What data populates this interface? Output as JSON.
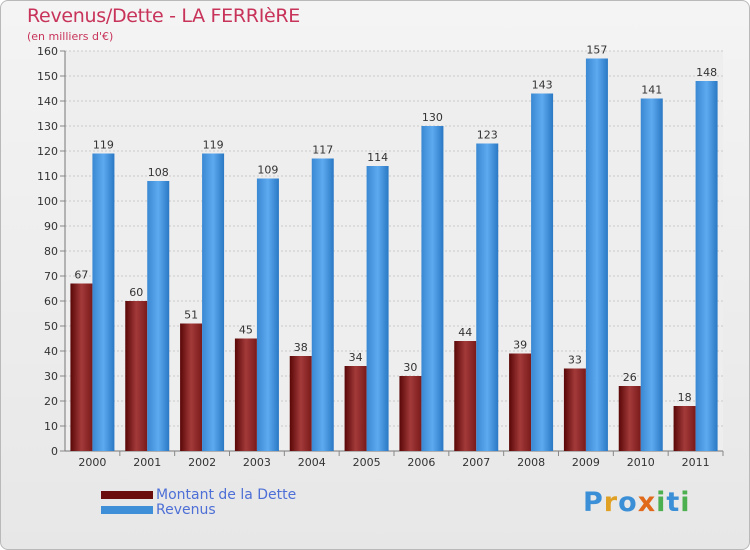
{
  "header": {
    "title": "Revenus/Dette - LA FERRIèRE",
    "subtitle": "(en milliers d'€)"
  },
  "legend": {
    "items": [
      {
        "label": "Montant de la Dette",
        "color": "#6b0d0d"
      },
      {
        "label": "Revenus",
        "color": "#3f8fd8"
      }
    ]
  },
  "logo": {
    "text": "Proxiti",
    "letters": [
      {
        "ch": "P",
        "color": "#3b8fd6"
      },
      {
        "ch": "r",
        "color": "#e0a024"
      },
      {
        "ch": "o",
        "color": "#3b8fd6"
      },
      {
        "ch": "x",
        "color": "#e06a1a"
      },
      {
        "ch": "i",
        "color": "#4caf50"
      },
      {
        "ch": "t",
        "color": "#3b8fd6"
      },
      {
        "ch": "i",
        "color": "#4caf50"
      }
    ]
  },
  "chart_data": {
    "type": "bar",
    "title": "Revenus/Dette - LA FERRIèRE",
    "subtitle": "(en milliers d'€)",
    "categories": [
      "2000",
      "2001",
      "2002",
      "2003",
      "2004",
      "2005",
      "2006",
      "2007",
      "2008",
      "2009",
      "2010",
      "2011"
    ],
    "series": [
      {
        "name": "Montant de la Dette",
        "color": "#7a1a1a",
        "values": [
          67,
          60,
          51,
          45,
          38,
          34,
          30,
          44,
          39,
          33,
          26,
          18
        ]
      },
      {
        "name": "Revenus",
        "color": "#3f8fd8",
        "values": [
          119,
          108,
          119,
          109,
          117,
          114,
          130,
          123,
          143,
          157,
          141,
          148
        ]
      }
    ],
    "ylim": [
      0,
      160
    ],
    "yticks": [
      0,
      10,
      20,
      30,
      40,
      50,
      60,
      70,
      80,
      90,
      100,
      110,
      120,
      130,
      140,
      150,
      160
    ],
    "grid": true,
    "legend_position": "bottom-left"
  }
}
